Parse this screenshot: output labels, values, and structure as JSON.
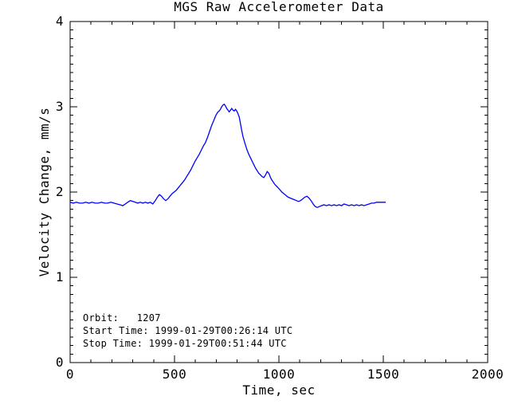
{
  "figure": {
    "background": "#ffffff",
    "axis_color": "#000000",
    "text_color": "#000000"
  },
  "chart_data": {
    "type": "line",
    "title": "MGS Raw Accelerometer Data",
    "xlabel": "Time, sec",
    "ylabel": "Velocity Change, mm/s",
    "xlim": [
      0,
      2000
    ],
    "ylim": [
      0,
      4
    ],
    "xticks": [
      0,
      500,
      1000,
      1500,
      2000
    ],
    "yticks": [
      0,
      1,
      2,
      3,
      4
    ],
    "x_minor_step": 100,
    "y_minor_step": 0.1,
    "grid": false,
    "legend_position": "none",
    "series": [
      {
        "name": "Velocity Change",
        "color": "#0000ff",
        "x": [
          0,
          15,
          30,
          45,
          60,
          75,
          90,
          105,
          120,
          135,
          150,
          165,
          180,
          195,
          210,
          225,
          240,
          252,
          264,
          276,
          288,
          300,
          312,
          324,
          336,
          348,
          360,
          372,
          384,
          396,
          408,
          418,
          428,
          438,
          448,
          458,
          468,
          478,
          488,
          498,
          508,
          518,
          528,
          538,
          548,
          558,
          568,
          578,
          588,
          598,
          608,
          618,
          628,
          638,
          648,
          658,
          668,
          678,
          688,
          698,
          708,
          714,
          720,
          726,
          732,
          738,
          744,
          750,
          756,
          762,
          768,
          774,
          780,
          786,
          792,
          798,
          804,
          810,
          816,
          822,
          828,
          834,
          840,
          848,
          856,
          864,
          872,
          880,
          888,
          896,
          904,
          912,
          920,
          928,
          936,
          944,
          952,
          958,
          964,
          972,
          980,
          988,
          996,
          1004,
          1014,
          1024,
          1034,
          1044,
          1054,
          1064,
          1074,
          1084,
          1094,
          1104,
          1114,
          1124,
          1134,
          1144,
          1154,
          1164,
          1174,
          1184,
          1194,
          1204,
          1216,
          1228,
          1240,
          1252,
          1264,
          1276,
          1288,
          1300,
          1312,
          1324,
          1336,
          1348,
          1360,
          1372,
          1384,
          1396,
          1408,
          1420,
          1432,
          1444,
          1456,
          1468,
          1480,
          1492,
          1504,
          1512
        ],
        "y": [
          1.88,
          1.87,
          1.88,
          1.87,
          1.87,
          1.88,
          1.87,
          1.88,
          1.87,
          1.87,
          1.88,
          1.87,
          1.87,
          1.88,
          1.87,
          1.86,
          1.85,
          1.84,
          1.86,
          1.88,
          1.9,
          1.89,
          1.88,
          1.87,
          1.88,
          1.87,
          1.88,
          1.87,
          1.88,
          1.86,
          1.9,
          1.94,
          1.97,
          1.95,
          1.92,
          1.9,
          1.92,
          1.95,
          1.98,
          2.0,
          2.02,
          2.05,
          2.08,
          2.11,
          2.14,
          2.18,
          2.22,
          2.26,
          2.31,
          2.36,
          2.4,
          2.44,
          2.49,
          2.54,
          2.58,
          2.64,
          2.71,
          2.78,
          2.84,
          2.9,
          2.94,
          2.95,
          2.97,
          3.0,
          3.02,
          3.03,
          3.01,
          2.98,
          2.96,
          2.94,
          2.96,
          2.98,
          2.96,
          2.95,
          2.97,
          2.95,
          2.92,
          2.88,
          2.8,
          2.72,
          2.65,
          2.6,
          2.55,
          2.49,
          2.44,
          2.4,
          2.36,
          2.32,
          2.28,
          2.25,
          2.22,
          2.2,
          2.18,
          2.17,
          2.2,
          2.24,
          2.22,
          2.18,
          2.15,
          2.12,
          2.09,
          2.07,
          2.05,
          2.03,
          2.0,
          1.98,
          1.96,
          1.94,
          1.93,
          1.92,
          1.91,
          1.9,
          1.89,
          1.9,
          1.92,
          1.94,
          1.95,
          1.93,
          1.9,
          1.86,
          1.83,
          1.82,
          1.83,
          1.84,
          1.85,
          1.84,
          1.85,
          1.84,
          1.85,
          1.84,
          1.85,
          1.84,
          1.86,
          1.85,
          1.84,
          1.85,
          1.84,
          1.85,
          1.84,
          1.85,
          1.84,
          1.85,
          1.86,
          1.87,
          1.87,
          1.88,
          1.88,
          1.88,
          1.88,
          1.88
        ]
      }
    ],
    "annotations": [
      {
        "text": "Orbit:   1207"
      },
      {
        "text": "Start Time: 1999-01-29T00:26:14 UTC"
      },
      {
        "text": "Stop Time: 1999-01-29T00:51:44 UTC"
      }
    ]
  }
}
